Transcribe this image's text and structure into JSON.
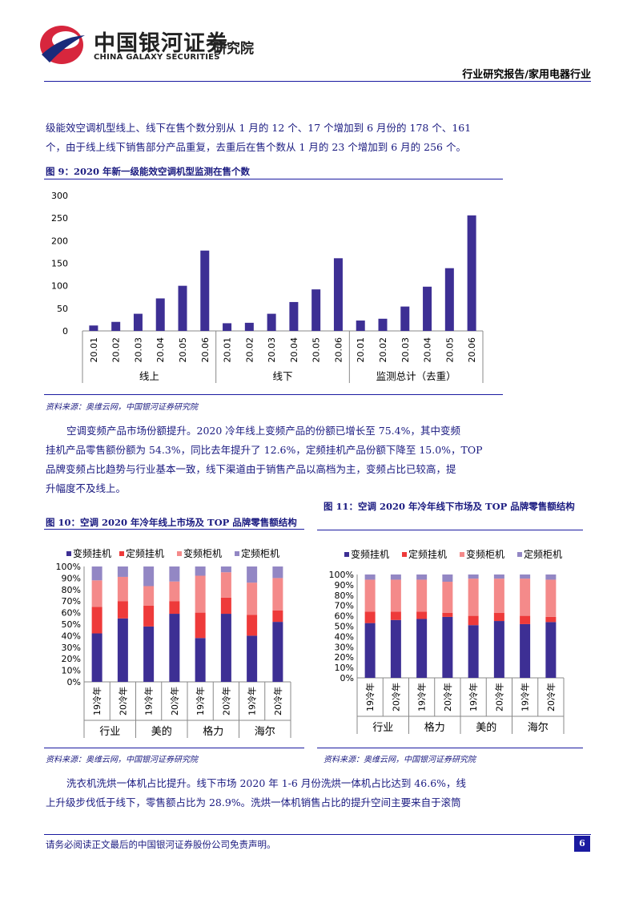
{
  "header": {
    "logo_cn": "中国银河证券",
    "logo_en": "CHINA GALAXY SECURITIES",
    "institute": "研究院",
    "report_type": "行业研究报告/家用电器行业"
  },
  "paragraphs": {
    "p1_line1": "级能效空调机型线上、线下在售个数分别从 1 月的 12 个、17 个增加到 6 月份的 178 个、161",
    "p1_line2": "个，由于线上线下销售部分产品重复，去重后在售个数从 1 月的 23 个增加到 6 月的 256 个。",
    "p2_line1": "空调变频产品市场份额提升。2020 冷年线上变频产品的份额已增长至 75.4%，其中变频",
    "p2_line2": "挂机产品零售额份额为 54.3%，同比去年提升了 12.6%，定频挂机产品份额下降至 15.0%，TOP",
    "p2_line3": "品牌变频占比趋势与行业基本一致，线下渠道由于销售产品以高档为主，变频占比已较高，提",
    "p2_line4": "升幅度不及线上。",
    "p3_line1": "洗衣机洗烘一体机占比提升。线下市场 2020 年 1-6 月份洗烘一体机占比达到 46.6%，线",
    "p3_line2": "上升级步伐低于线下，零售额占比为 28.9%。洗烘一体机销售占比的提升空间主要来自于滚筒"
  },
  "figures": {
    "fig9_title": "图 9：2020 年新一级能效空调机型监测在售个数",
    "fig10_title": "图 10：空调 2020 年冷年线上市场及 TOP 品牌零售额结构",
    "fig11_title": "图 11：空调 2020 年冷年线下市场及 TOP 品牌零售额结构",
    "source_text": "资料来源：奥维云网，中国银河证券研究院"
  },
  "footer": {
    "disclaimer": "请务必阅读正文最后的中国银河证券股份公司免责声明。",
    "page": "6"
  },
  "colors": {
    "series1": "#3d2f94",
    "series2": "#ee3a3a",
    "series3": "#f48a8a",
    "series4": "#9387c4",
    "text_blue": "#1a1a80"
  },
  "chart_data": [
    {
      "type": "bar",
      "categories": [
        "20.01",
        "20.02",
        "20.03",
        "20.04",
        "20.05",
        "20.06",
        "20.01",
        "20.02",
        "20.03",
        "20.04",
        "20.05",
        "20.06",
        "20.01",
        "20.02",
        "20.03",
        "20.04",
        "20.05",
        "20.06"
      ],
      "groups": [
        "线上",
        "线下",
        "监测总计（去重）"
      ],
      "values": [
        12,
        20,
        38,
        72,
        100,
        178,
        17,
        18,
        38,
        64,
        92,
        161,
        23,
        27,
        54,
        98,
        139,
        256
      ],
      "ylim": [
        0,
        300
      ],
      "yticks": [
        0,
        50,
        100,
        150,
        200,
        250,
        300
      ]
    },
    {
      "type": "bar",
      "stacked": true,
      "categories": [
        "19冷年",
        "20冷年",
        "19冷年",
        "20冷年",
        "19冷年",
        "20冷年",
        "19冷年",
        "20冷年"
      ],
      "groups": [
        "行业",
        "美的",
        "格力",
        "海尔"
      ],
      "series": [
        {
          "name": "变频挂机",
          "values": [
            42,
            55,
            48,
            59,
            38,
            59,
            40,
            52
          ]
        },
        {
          "name": "定频挂机",
          "values": [
            23,
            15,
            18,
            11,
            22,
            14,
            18,
            10
          ]
        },
        {
          "name": "变频柜机",
          "values": [
            23,
            21,
            17,
            17,
            32,
            22,
            28,
            28
          ]
        },
        {
          "name": "定频柜机",
          "values": [
            12,
            9,
            17,
            13,
            8,
            5,
            14,
            10
          ]
        }
      ],
      "ylim": [
        0,
        100
      ],
      "yticks": [
        "0%",
        "10%",
        "20%",
        "30%",
        "40%",
        "50%",
        "60%",
        "70%",
        "80%",
        "90%",
        "100%"
      ],
      "legend": "top"
    },
    {
      "type": "bar",
      "stacked": true,
      "categories": [
        "19冷年",
        "20冷年",
        "19冷年",
        "20冷年",
        "19冷年",
        "20冷年",
        "19冷年",
        "20冷年"
      ],
      "groups": [
        "行业",
        "格力",
        "美的",
        "海尔"
      ],
      "series": [
        {
          "name": "变频挂机",
          "values": [
            53,
            56,
            57,
            59,
            51,
            55,
            52,
            54
          ]
        },
        {
          "name": "定频挂机",
          "values": [
            11,
            8,
            7,
            4,
            9,
            8,
            8,
            5
          ]
        },
        {
          "name": "变频柜机",
          "values": [
            31,
            31,
            31,
            30,
            36,
            33,
            36,
            36
          ]
        },
        {
          "name": "定频柜机",
          "values": [
            5,
            5,
            5,
            7,
            4,
            4,
            4,
            5
          ]
        }
      ],
      "ylim": [
        0,
        100
      ],
      "yticks": [
        "0%",
        "10%",
        "20%",
        "30%",
        "40%",
        "50%",
        "60%",
        "70%",
        "80%",
        "90%",
        "100%"
      ],
      "legend": "top"
    }
  ]
}
